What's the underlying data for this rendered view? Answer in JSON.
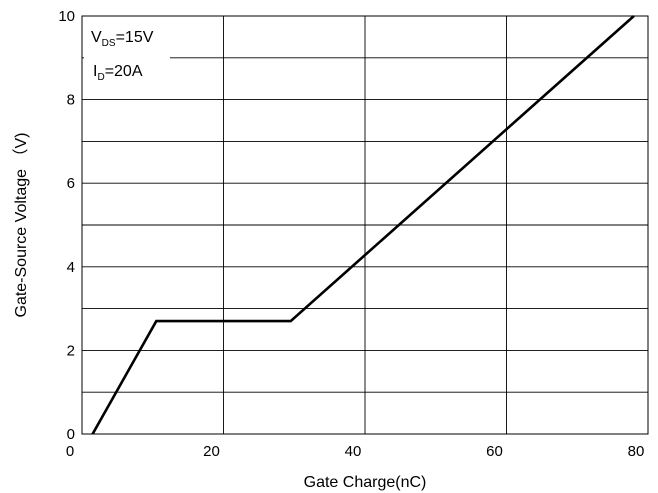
{
  "chart_data": {
    "type": "line",
    "xlabel": "Gate Charge(nC)",
    "ylabel": "Gate-Source Voltage （V)",
    "xlim": [
      0,
      80
    ],
    "ylim": [
      0,
      10
    ],
    "xticks": [
      "0",
      "20",
      "40",
      "60",
      "80"
    ],
    "yticks": [
      "0",
      "2",
      "4",
      "6",
      "8",
      "10"
    ],
    "grid": true,
    "series": [
      {
        "x": [
          1.5,
          10.5,
          29.5,
          78
        ],
        "y": [
          0,
          2.7,
          2.7,
          10
        ]
      }
    ],
    "annotations": {
      "vds": {
        "main": "V",
        "sub": "DS",
        "rest": "=15V"
      },
      "id": {
        "main": "I",
        "sub": "D",
        "rest": "=20A"
      }
    }
  }
}
